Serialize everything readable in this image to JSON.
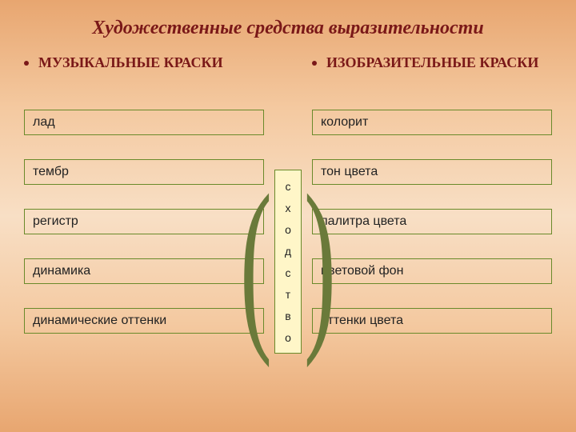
{
  "title": "Художественные средства выразительности",
  "left": {
    "heading": "МУЗЫКАЛЬНЫЕ КРАСКИ",
    "items": [
      "лад",
      "тембр",
      "регистр",
      "динамика",
      "динамические оттенки"
    ]
  },
  "right": {
    "heading": "ИЗОБРАЗИТЕЛЬНЫЕ КРАСКИ",
    "items": [
      "колорит",
      "тон цвета",
      "палитра цвета",
      "цветовой фон",
      "оттенки цвета"
    ]
  },
  "center_letters": [
    "с",
    "х",
    "о",
    "д",
    "с",
    "т",
    "в",
    "о"
  ],
  "colors": {
    "title": "#7a1818",
    "heading": "#7a1818",
    "box_border": "#6a8a2a",
    "center_bg": "#fff6c8",
    "center_border": "#6a8a2a",
    "paren": "#6a7a3a"
  }
}
